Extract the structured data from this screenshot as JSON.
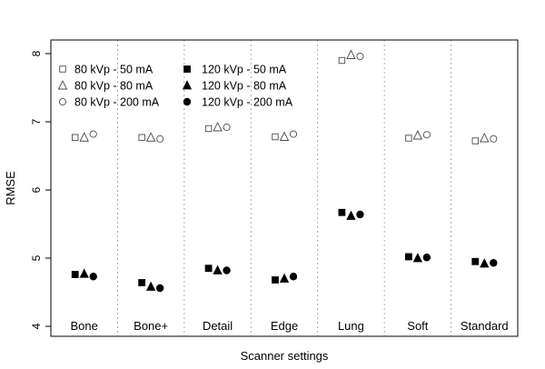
{
  "chart_data": {
    "type": "scatter",
    "xlabel": "Scanner settings",
    "ylabel": "RMSE",
    "ylim": [
      4,
      8
    ],
    "y_ticks": [
      "4",
      "5",
      "6",
      "7",
      "8"
    ],
    "categories": [
      "Bone",
      "Bone+",
      "Detail",
      "Edge",
      "Lung",
      "Soft",
      "Standard"
    ],
    "grid": "dashed vertical separators between categories",
    "legend_position": "top-left",
    "series": [
      {
        "name": "80 kVp - 50 mA",
        "marker": "square-open",
        "values": [
          6.77,
          6.77,
          6.9,
          6.78,
          7.9,
          6.76,
          6.72
        ]
      },
      {
        "name": "80 kVp - 80 mA",
        "marker": "triangle-open",
        "values": [
          6.77,
          6.77,
          6.92,
          6.78,
          7.98,
          6.8,
          6.76
        ]
      },
      {
        "name": "80 kVp - 200 mA",
        "marker": "circle-open",
        "values": [
          6.82,
          6.75,
          6.92,
          6.82,
          7.96,
          6.81,
          6.75
        ]
      },
      {
        "name": "120 kVp - 50 mA",
        "marker": "square-filled",
        "values": [
          4.76,
          4.64,
          4.85,
          4.68,
          5.67,
          5.02,
          4.95
        ]
      },
      {
        "name": "120 kVp - 80 mA",
        "marker": "triangle-filled",
        "values": [
          4.77,
          4.58,
          4.82,
          4.7,
          5.62,
          5.0,
          4.92
        ]
      },
      {
        "name": "120 kVp - 200 mA",
        "marker": "circle-filled",
        "values": [
          4.73,
          4.56,
          4.82,
          4.73,
          5.64,
          5.01,
          4.93
        ]
      }
    ]
  }
}
